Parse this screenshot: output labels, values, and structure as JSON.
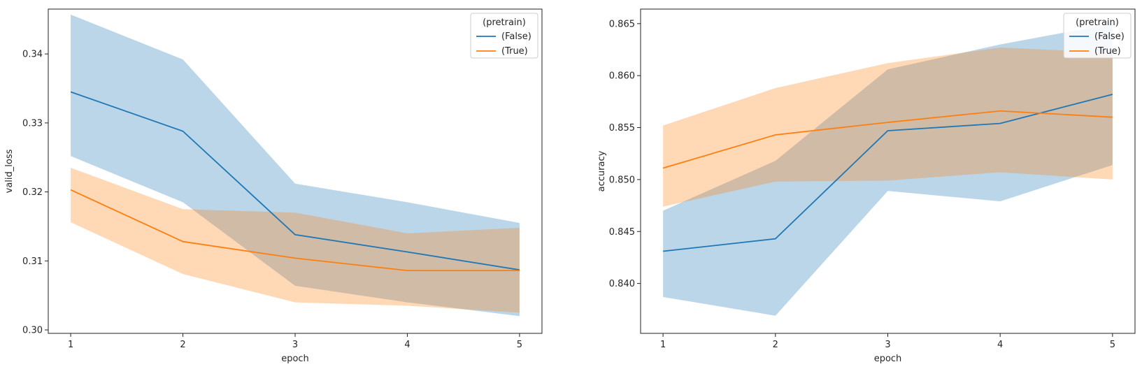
{
  "chart_data": [
    {
      "type": "line",
      "title": "",
      "xlabel": "epoch",
      "ylabel": "valid_loss",
      "xlim": [
        0.8,
        5.2
      ],
      "ylim": [
        0.2995,
        0.3465
      ],
      "xticks": [
        1,
        2,
        3,
        4,
        5
      ],
      "yticks": [
        0.3,
        0.31,
        0.32,
        0.33,
        0.34
      ],
      "ytick_decimals": 2,
      "x": [
        1,
        2,
        3,
        4,
        5
      ],
      "legend": {
        "title": "(pretrain)",
        "placement": "top-right"
      },
      "series": [
        {
          "name": "(False)",
          "color": "#1f77b4",
          "values": [
            0.3345,
            0.3288,
            0.3138,
            0.3113,
            0.3087
          ],
          "lower": [
            0.3252,
            0.3185,
            0.3064,
            0.304,
            0.302
          ],
          "upper": [
            0.3457,
            0.3392,
            0.3212,
            0.3185,
            0.3155
          ]
        },
        {
          "name": "(True)",
          "color": "#ff7f0e",
          "values": [
            0.3203,
            0.3128,
            0.3104,
            0.3086,
            0.3086
          ],
          "lower": [
            0.3156,
            0.3081,
            0.304,
            0.3035,
            0.3025
          ],
          "upper": [
            0.3235,
            0.3175,
            0.317,
            0.314,
            0.3148
          ]
        }
      ]
    },
    {
      "type": "line",
      "title": "",
      "xlabel": "epoch",
      "ylabel": "accuracy",
      "xlim": [
        0.8,
        5.2
      ],
      "ylim": [
        0.8352,
        0.8664
      ],
      "xticks": [
        1,
        2,
        3,
        4,
        5
      ],
      "yticks": [
        0.84,
        0.845,
        0.85,
        0.855,
        0.86,
        0.865
      ],
      "ytick_decimals": 3,
      "x": [
        1,
        2,
        3,
        4,
        5
      ],
      "legend": {
        "title": "(pretrain)",
        "placement": "top-right"
      },
      "series": [
        {
          "name": "(False)",
          "color": "#1f77b4",
          "values": [
            0.8431,
            0.8443,
            0.8547,
            0.8554,
            0.8582
          ],
          "lower": [
            0.8387,
            0.8369,
            0.8489,
            0.8479,
            0.8514
          ],
          "upper": [
            0.847,
            0.8518,
            0.8606,
            0.863,
            0.865
          ]
        },
        {
          "name": "(True)",
          "color": "#ff7f0e",
          "values": [
            0.8511,
            0.8543,
            0.8555,
            0.8566,
            0.856
          ],
          "lower": [
            0.8474,
            0.8498,
            0.8499,
            0.8507,
            0.85
          ],
          "upper": [
            0.8552,
            0.8588,
            0.8612,
            0.8627,
            0.8622
          ]
        }
      ]
    }
  ]
}
